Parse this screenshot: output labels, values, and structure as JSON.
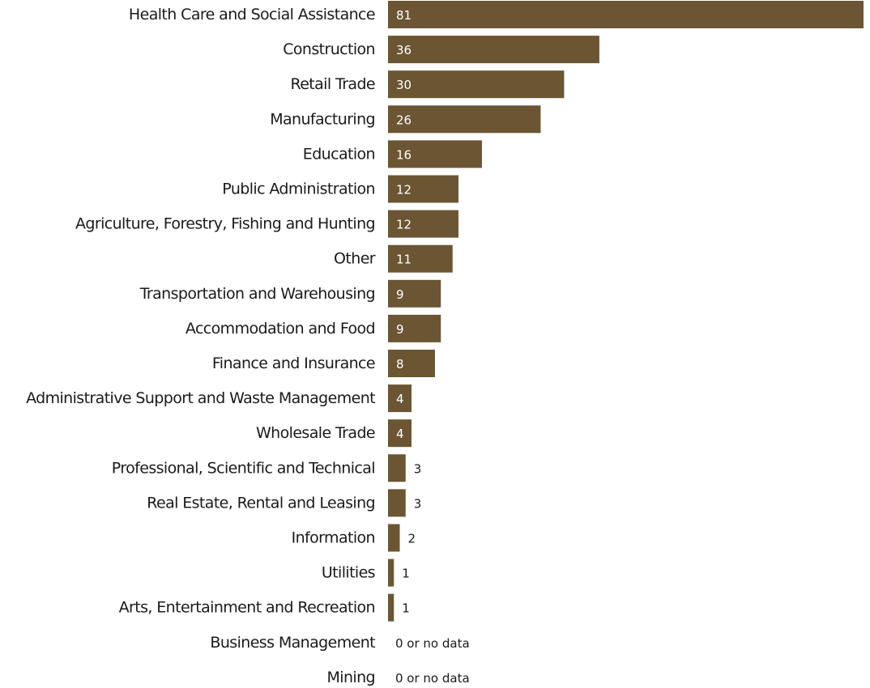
{
  "chart_data": {
    "type": "bar",
    "orientation": "horizontal",
    "categories": [
      "Health Care and Social Assistance",
      "Construction",
      "Retail Trade",
      "Manufacturing",
      "Education",
      "Public Administration",
      "Agriculture, Forestry, Fishing and Hunting",
      "Other",
      "Transportation and Warehousing",
      "Accommodation and Food",
      "Finance and Insurance",
      "Administrative Support and Waste Management",
      "Wholesale Trade",
      "Professional, Scientific and Technical",
      "Real Estate, Rental and Leasing",
      "Information",
      "Utilities",
      "Arts, Entertainment and Recreation",
      "Business Management",
      "Mining"
    ],
    "values": [
      81,
      36,
      30,
      26,
      16,
      12,
      12,
      11,
      9,
      9,
      8,
      4,
      4,
      3,
      3,
      2,
      1,
      1,
      0,
      0
    ],
    "value_labels": [
      "81",
      "36",
      "30",
      "26",
      "16",
      "12",
      "12",
      "11",
      "9",
      "9",
      "8",
      "4",
      "4",
      "3",
      "3",
      "2",
      "1",
      "1",
      "0 or no data",
      "0 or no data"
    ],
    "bar_color": "#6b5532",
    "xlim": [
      0,
      81
    ],
    "grid": false,
    "title": "",
    "xlabel": "",
    "ylabel": ""
  }
}
